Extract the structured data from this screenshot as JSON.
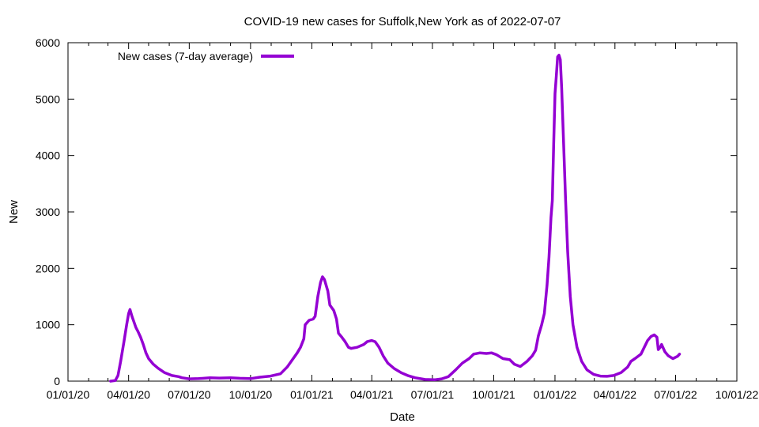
{
  "chart_data": {
    "type": "line",
    "title": "COVID-19 new cases for Suffolk,New York as of 2022-07-07",
    "xlabel": "Date",
    "ylabel": "New",
    "xlim": [
      "2020-01-01",
      "2022-10-01"
    ],
    "ylim": [
      0,
      6000
    ],
    "xticks": [
      {
        "date": "2020-01-01",
        "label": "01/01/20"
      },
      {
        "date": "2020-04-01",
        "label": "04/01/20"
      },
      {
        "date": "2020-07-01",
        "label": "07/01/20"
      },
      {
        "date": "2020-10-01",
        "label": "10/01/20"
      },
      {
        "date": "2021-01-01",
        "label": "01/01/21"
      },
      {
        "date": "2021-04-01",
        "label": "04/01/21"
      },
      {
        "date": "2021-07-01",
        "label": "07/01/21"
      },
      {
        "date": "2021-10-01",
        "label": "10/01/21"
      },
      {
        "date": "2022-01-01",
        "label": "01/01/22"
      },
      {
        "date": "2022-04-01",
        "label": "04/01/22"
      },
      {
        "date": "2022-07-01",
        "label": "07/01/22"
      },
      {
        "date": "2022-10-01",
        "label": "10/01/22"
      }
    ],
    "yticks": [
      0,
      1000,
      2000,
      3000,
      4000,
      5000,
      6000
    ],
    "grid": false,
    "legend": "top-left",
    "series": [
      {
        "name": "New cases (7-day average)",
        "color": "#9400d3",
        "points": [
          [
            "2020-03-05",
            0
          ],
          [
            "2020-03-12",
            10
          ],
          [
            "2020-03-16",
            100
          ],
          [
            "2020-03-20",
            350
          ],
          [
            "2020-03-25",
            700
          ],
          [
            "2020-03-29",
            1000
          ],
          [
            "2020-04-01",
            1200
          ],
          [
            "2020-04-03",
            1270
          ],
          [
            "2020-04-06",
            1150
          ],
          [
            "2020-04-09",
            1050
          ],
          [
            "2020-04-12",
            950
          ],
          [
            "2020-04-15",
            880
          ],
          [
            "2020-04-19",
            780
          ],
          [
            "2020-04-23",
            650
          ],
          [
            "2020-04-27",
            500
          ],
          [
            "2020-05-01",
            400
          ],
          [
            "2020-05-08",
            300
          ],
          [
            "2020-05-15",
            230
          ],
          [
            "2020-05-25",
            150
          ],
          [
            "2020-06-05",
            100
          ],
          [
            "2020-06-15",
            80
          ],
          [
            "2020-06-20",
            60
          ],
          [
            "2020-07-01",
            40
          ],
          [
            "2020-07-15",
            45
          ],
          [
            "2020-08-01",
            60
          ],
          [
            "2020-08-15",
            55
          ],
          [
            "2020-09-01",
            60
          ],
          [
            "2020-09-15",
            50
          ],
          [
            "2020-10-01",
            45
          ],
          [
            "2020-10-15",
            70
          ],
          [
            "2020-10-31",
            90
          ],
          [
            "2020-11-15",
            130
          ],
          [
            "2020-11-25",
            250
          ],
          [
            "2020-12-01",
            350
          ],
          [
            "2020-12-10",
            500
          ],
          [
            "2020-12-15",
            600
          ],
          [
            "2020-12-20",
            750
          ],
          [
            "2020-12-22",
            1000
          ],
          [
            "2020-12-28",
            1080
          ],
          [
            "2021-01-03",
            1100
          ],
          [
            "2021-01-06",
            1150
          ],
          [
            "2021-01-10",
            1500
          ],
          [
            "2021-01-14",
            1750
          ],
          [
            "2021-01-17",
            1850
          ],
          [
            "2021-01-20",
            1800
          ],
          [
            "2021-01-25",
            1600
          ],
          [
            "2021-01-28",
            1350
          ],
          [
            "2021-02-03",
            1250
          ],
          [
            "2021-02-07",
            1100
          ],
          [
            "2021-02-10",
            850
          ],
          [
            "2021-02-15",
            780
          ],
          [
            "2021-02-20",
            700
          ],
          [
            "2021-02-25",
            600
          ],
          [
            "2021-03-01",
            580
          ],
          [
            "2021-03-10",
            600
          ],
          [
            "2021-03-20",
            650
          ],
          [
            "2021-03-25",
            700
          ],
          [
            "2021-04-01",
            720
          ],
          [
            "2021-04-06",
            700
          ],
          [
            "2021-04-12",
            600
          ],
          [
            "2021-04-18",
            450
          ],
          [
            "2021-04-25",
            320
          ],
          [
            "2021-05-05",
            220
          ],
          [
            "2021-05-15",
            150
          ],
          [
            "2021-05-25",
            100
          ],
          [
            "2021-06-05",
            60
          ],
          [
            "2021-06-20",
            30
          ],
          [
            "2021-07-05",
            25
          ],
          [
            "2021-07-15",
            40
          ],
          [
            "2021-07-25",
            80
          ],
          [
            "2021-08-05",
            200
          ],
          [
            "2021-08-15",
            320
          ],
          [
            "2021-08-25",
            400
          ],
          [
            "2021-09-01",
            480
          ],
          [
            "2021-09-10",
            500
          ],
          [
            "2021-09-20",
            490
          ],
          [
            "2021-09-28",
            500
          ],
          [
            "2021-10-05",
            470
          ],
          [
            "2021-10-15",
            400
          ],
          [
            "2021-10-25",
            380
          ],
          [
            "2021-11-01",
            300
          ],
          [
            "2021-11-10",
            260
          ],
          [
            "2021-11-20",
            350
          ],
          [
            "2021-11-28",
            450
          ],
          [
            "2021-12-03",
            550
          ],
          [
            "2021-12-07",
            800
          ],
          [
            "2021-12-12",
            1000
          ],
          [
            "2021-12-16",
            1200
          ],
          [
            "2021-12-20",
            1700
          ],
          [
            "2021-12-23",
            2200
          ],
          [
            "2021-12-26",
            2900
          ],
          [
            "2021-12-28",
            3200
          ],
          [
            "2021-12-30",
            4200
          ],
          [
            "2022-01-01",
            5100
          ],
          [
            "2022-01-03",
            5400
          ],
          [
            "2022-01-05",
            5750
          ],
          [
            "2022-01-07",
            5780
          ],
          [
            "2022-01-09",
            5700
          ],
          [
            "2022-01-11",
            5200
          ],
          [
            "2022-01-14",
            4200
          ],
          [
            "2022-01-17",
            3200
          ],
          [
            "2022-01-20",
            2300
          ],
          [
            "2022-01-24",
            1500
          ],
          [
            "2022-01-28",
            1000
          ],
          [
            "2022-02-03",
            600
          ],
          [
            "2022-02-10",
            350
          ],
          [
            "2022-02-18",
            200
          ],
          [
            "2022-02-28",
            120
          ],
          [
            "2022-03-10",
            90
          ],
          [
            "2022-03-20",
            85
          ],
          [
            "2022-03-30",
            100
          ],
          [
            "2022-04-10",
            150
          ],
          [
            "2022-04-20",
            250
          ],
          [
            "2022-04-25",
            350
          ],
          [
            "2022-05-01",
            400
          ],
          [
            "2022-05-10",
            480
          ],
          [
            "2022-05-15",
            600
          ],
          [
            "2022-05-20",
            720
          ],
          [
            "2022-05-25",
            790
          ],
          [
            "2022-05-30",
            820
          ],
          [
            "2022-06-03",
            780
          ],
          [
            "2022-06-05",
            560
          ],
          [
            "2022-06-08",
            600
          ],
          [
            "2022-06-10",
            650
          ],
          [
            "2022-06-15",
            520
          ],
          [
            "2022-06-20",
            450
          ],
          [
            "2022-06-27",
            400
          ],
          [
            "2022-07-04",
            440
          ],
          [
            "2022-07-07",
            480
          ]
        ]
      }
    ]
  }
}
